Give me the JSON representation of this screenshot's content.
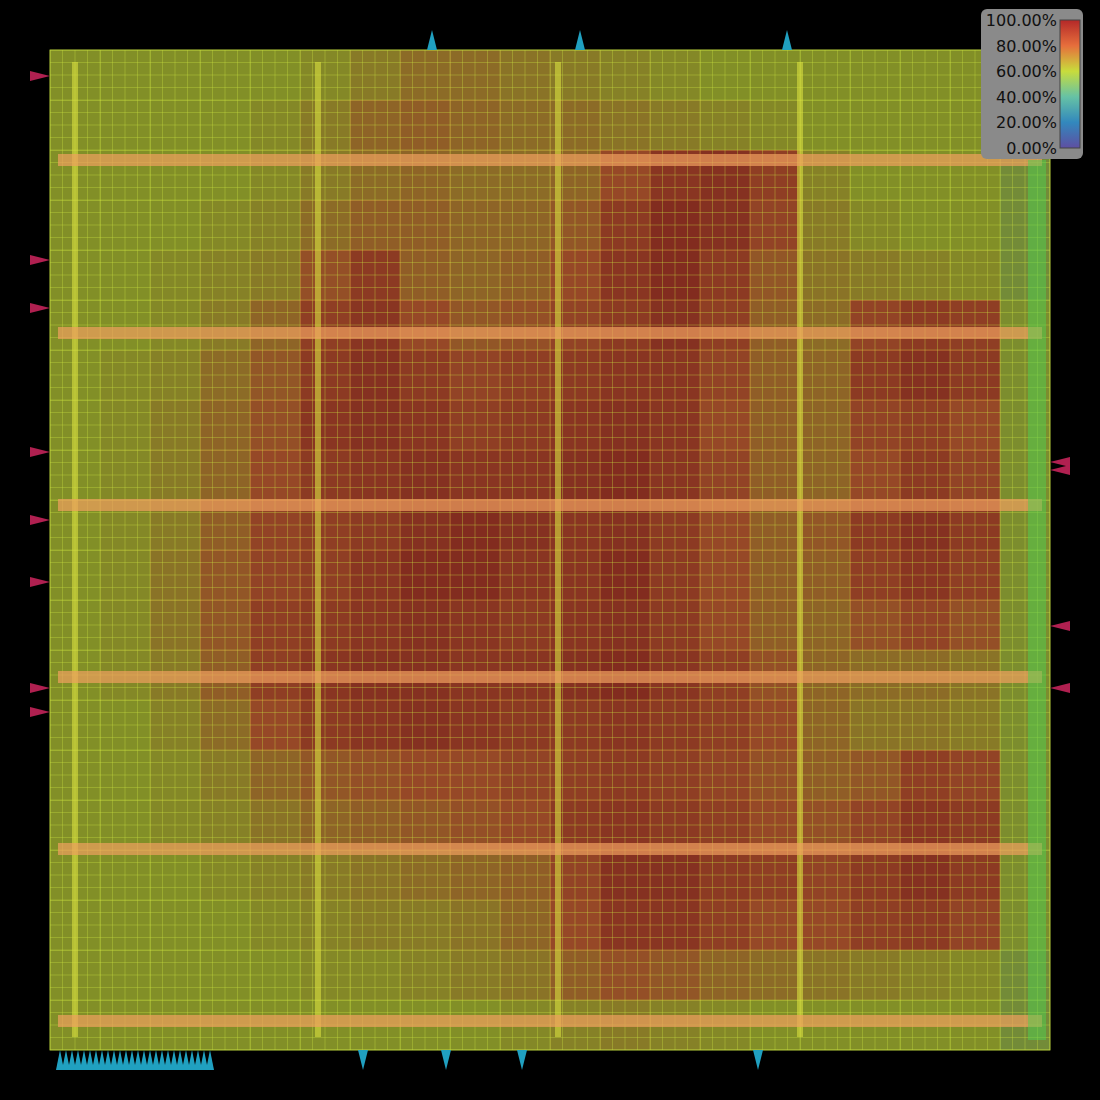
{
  "chart_data": {
    "type": "heatmap",
    "tick_labels": false,
    "values": [
      [
        60,
        60,
        60,
        60,
        60,
        62,
        66,
        70,
        70,
        68,
        66,
        64,
        62,
        60,
        60,
        60,
        60,
        60,
        60,
        55
      ],
      [
        60,
        60,
        60,
        60,
        62,
        66,
        72,
        74,
        72,
        70,
        70,
        68,
        66,
        64,
        62,
        60,
        60,
        60,
        60,
        55
      ],
      [
        60,
        60,
        60,
        60,
        62,
        66,
        70,
        72,
        70,
        70,
        72,
        80,
        88,
        90,
        84,
        64,
        60,
        60,
        60,
        55
      ],
      [
        60,
        60,
        60,
        62,
        64,
        70,
        74,
        74,
        72,
        72,
        76,
        86,
        92,
        90,
        82,
        66,
        62,
        60,
        60,
        55
      ],
      [
        60,
        60,
        62,
        64,
        66,
        78,
        86,
        74,
        72,
        74,
        80,
        88,
        92,
        86,
        76,
        68,
        66,
        64,
        62,
        55
      ],
      [
        60,
        60,
        62,
        66,
        72,
        84,
        88,
        80,
        76,
        78,
        82,
        86,
        90,
        84,
        74,
        70,
        82,
        86,
        84,
        58
      ],
      [
        60,
        62,
        64,
        70,
        76,
        86,
        90,
        86,
        82,
        84,
        86,
        88,
        88,
        82,
        74,
        72,
        86,
        90,
        86,
        58
      ],
      [
        60,
        62,
        66,
        72,
        78,
        88,
        90,
        88,
        84,
        86,
        88,
        90,
        88,
        80,
        74,
        72,
        82,
        84,
        80,
        58
      ],
      [
        60,
        62,
        66,
        72,
        80,
        86,
        88,
        90,
        88,
        88,
        90,
        92,
        88,
        82,
        74,
        72,
        80,
        86,
        82,
        58
      ],
      [
        60,
        62,
        66,
        74,
        82,
        84,
        86,
        90,
        92,
        90,
        88,
        90,
        86,
        80,
        74,
        76,
        86,
        90,
        86,
        58
      ],
      [
        60,
        62,
        68,
        76,
        82,
        84,
        88,
        92,
        92,
        88,
        88,
        92,
        86,
        80,
        74,
        74,
        84,
        88,
        84,
        58
      ],
      [
        60,
        62,
        68,
        76,
        84,
        86,
        88,
        90,
        88,
        86,
        88,
        90,
        86,
        80,
        74,
        72,
        78,
        82,
        78,
        58
      ],
      [
        60,
        62,
        66,
        74,
        84,
        88,
        90,
        90,
        88,
        88,
        90,
        92,
        88,
        84,
        78,
        72,
        70,
        70,
        68,
        58
      ],
      [
        60,
        60,
        64,
        70,
        80,
        86,
        88,
        90,
        88,
        86,
        86,
        88,
        86,
        84,
        80,
        72,
        68,
        68,
        66,
        58
      ],
      [
        60,
        60,
        62,
        66,
        72,
        76,
        78,
        80,
        80,
        82,
        84,
        86,
        84,
        82,
        78,
        74,
        76,
        84,
        82,
        58
      ],
      [
        60,
        60,
        62,
        64,
        68,
        72,
        74,
        76,
        78,
        80,
        86,
        88,
        86,
        84,
        80,
        78,
        82,
        88,
        86,
        58
      ],
      [
        60,
        60,
        60,
        62,
        64,
        66,
        68,
        70,
        72,
        74,
        82,
        90,
        90,
        86,
        84,
        82,
        86,
        90,
        86,
        58
      ],
      [
        60,
        60,
        60,
        60,
        62,
        64,
        66,
        66,
        68,
        72,
        80,
        88,
        88,
        84,
        80,
        80,
        84,
        86,
        82,
        58
      ],
      [
        60,
        60,
        60,
        60,
        60,
        62,
        62,
        64,
        66,
        68,
        74,
        78,
        76,
        72,
        70,
        68,
        66,
        64,
        62,
        55
      ],
      [
        60,
        60,
        60,
        60,
        60,
        60,
        60,
        60,
        60,
        62,
        64,
        66,
        64,
        62,
        60,
        60,
        60,
        60,
        60,
        55
      ]
    ],
    "colorbar": {
      "range": [
        0,
        100
      ],
      "ticks": [
        {
          "value": 100,
          "label": "100.00%"
        },
        {
          "value": 80,
          "label": "80.00%"
        },
        {
          "value": 60,
          "label": "60.00%"
        },
        {
          "value": 40,
          "label": "40.00%"
        },
        {
          "value": 20,
          "label": "20.00%"
        },
        {
          "value": 0,
          "label": "0.00%"
        }
      ]
    }
  }
}
